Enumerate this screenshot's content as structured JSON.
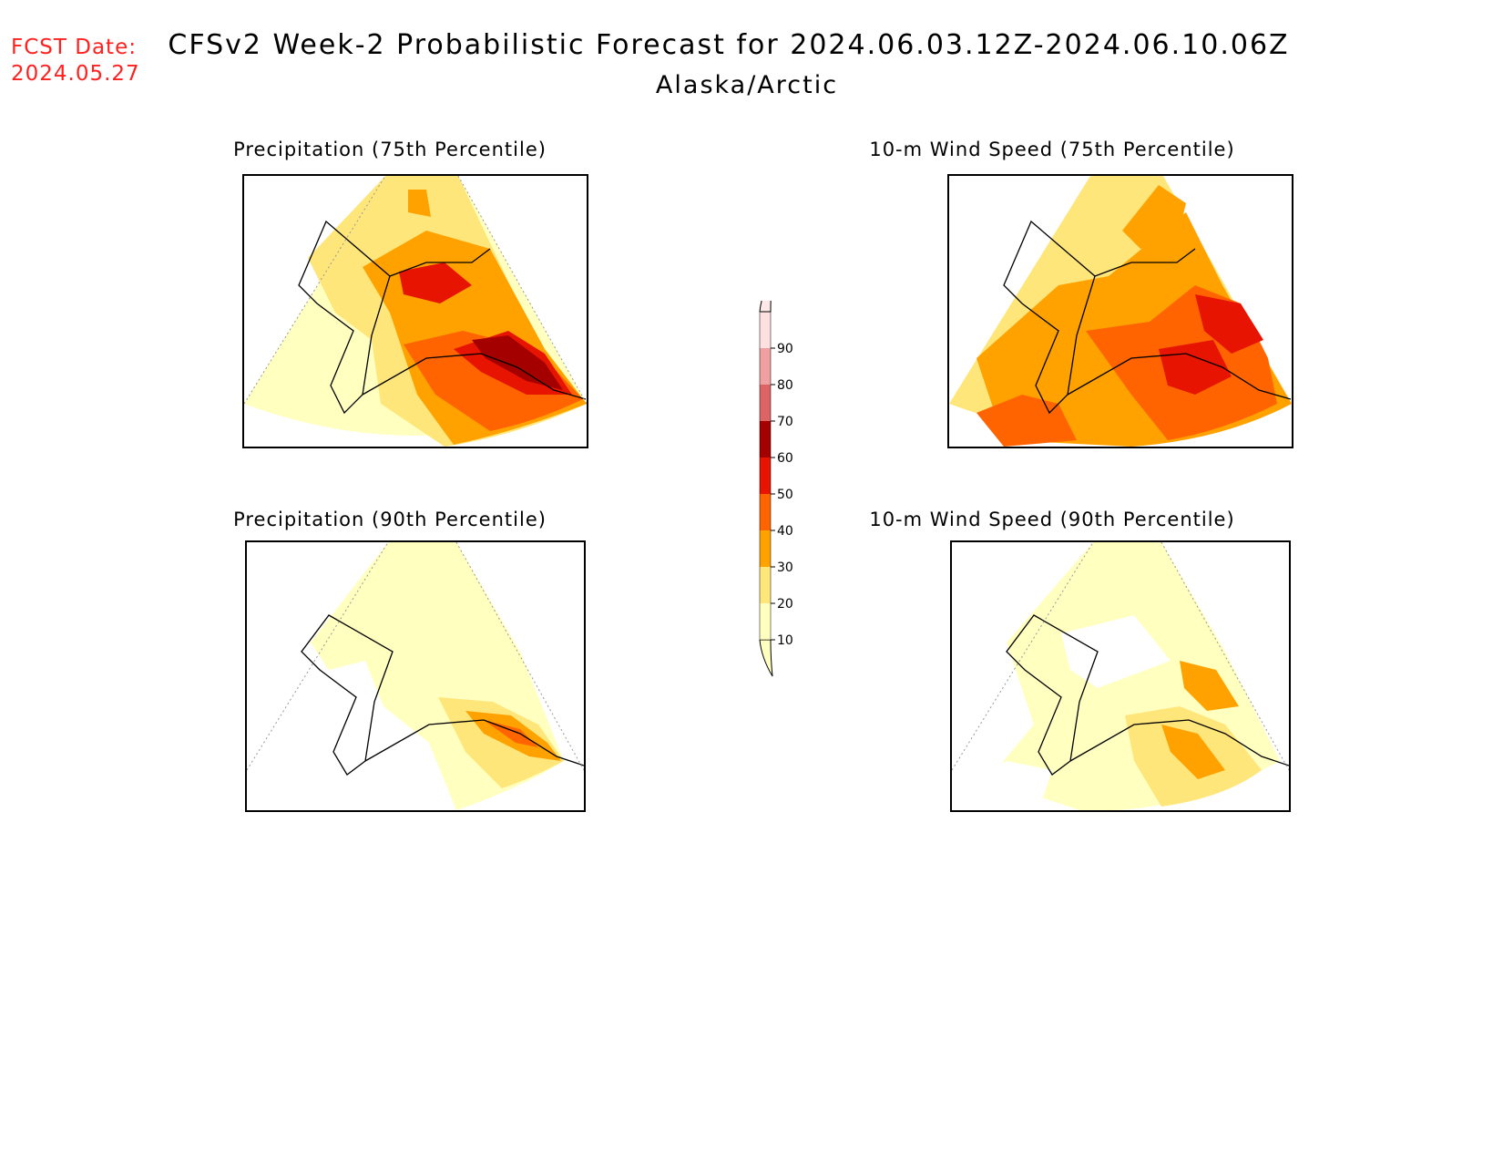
{
  "header": {
    "fcst_label": "FCST Date:",
    "fcst_date": "2024.05.27",
    "title": "CFSv2 Week-2 Probabilistic Forecast for 2024.06.03.12Z-2024.06.10.06Z",
    "subtitle": "Alaska/Arctic"
  },
  "panels": [
    {
      "title": "Precipitation (75th Percentile)"
    },
    {
      "title": "10-m Wind Speed (75th Percentile)"
    },
    {
      "title": "Precipitation (90th Percentile)"
    },
    {
      "title": "10-m Wind Speed (90th Percentile)"
    }
  ],
  "colorbar": {
    "levels": [
      "10",
      "20",
      "30",
      "40",
      "50",
      "60",
      "70",
      "80",
      "90"
    ],
    "colors": [
      "#ffffc0",
      "#ffe67a",
      "#ffa200",
      "#ff6400",
      "#e61400",
      "#a50000",
      "#dc6464",
      "#f0a0a0",
      "#ffe0e0"
    ]
  }
}
